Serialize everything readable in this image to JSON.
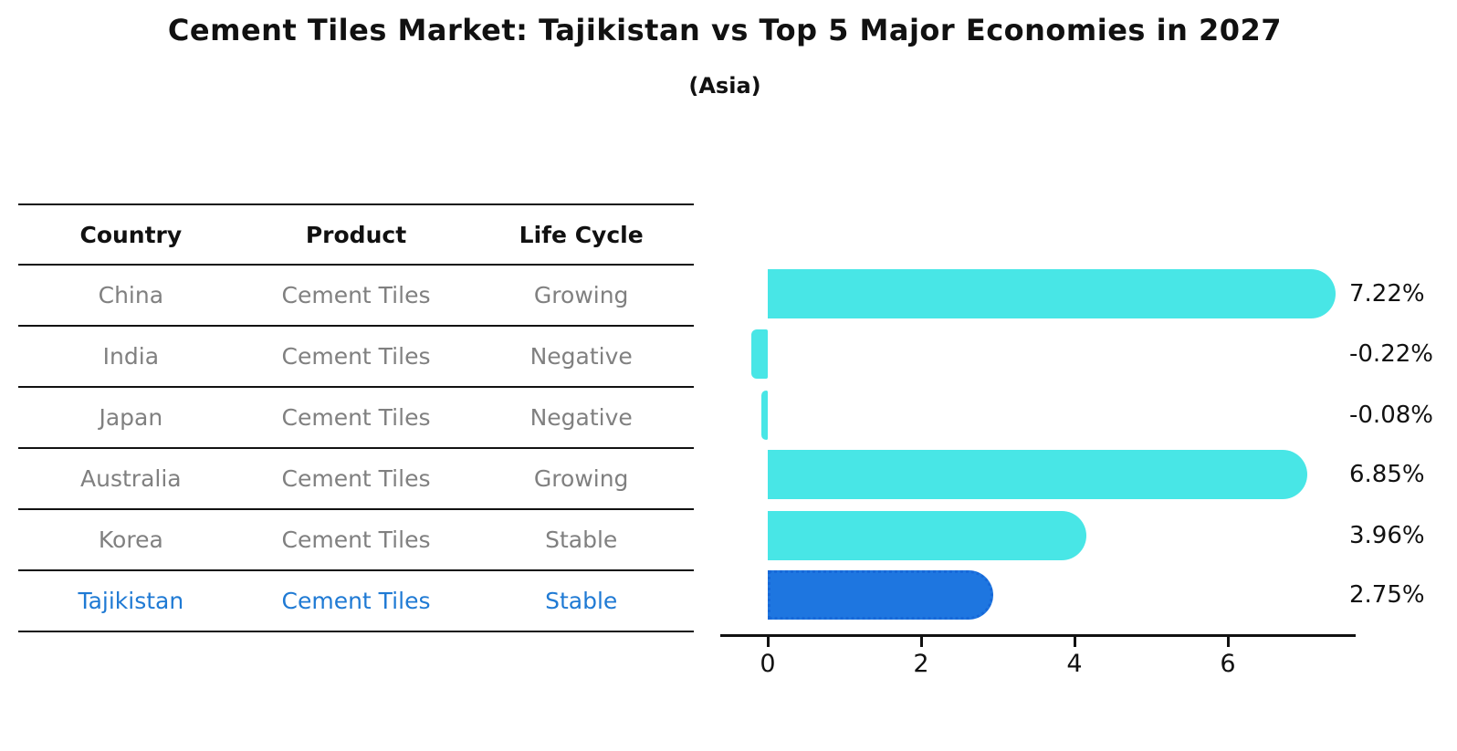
{
  "title": "Cement Tiles Market: Tajikistan vs Top 5 Major Economies in 2027",
  "subtitle": "(Asia)",
  "table": {
    "headers": [
      "Country",
      "Product",
      "Life Cycle"
    ],
    "rows": [
      {
        "country": "China",
        "product": "Cement Tiles",
        "life_cycle": "Growing",
        "highlight": false
      },
      {
        "country": "India",
        "product": "Cement Tiles",
        "life_cycle": "Negative",
        "highlight": false
      },
      {
        "country": "Japan",
        "product": "Cement Tiles",
        "life_cycle": "Negative",
        "highlight": false
      },
      {
        "country": "Australia",
        "product": "Cement Tiles",
        "life_cycle": "Growing",
        "highlight": false
      },
      {
        "country": "Korea",
        "product": "Cement Tiles",
        "life_cycle": "Stable",
        "highlight": false
      },
      {
        "country": "Tajikistan",
        "product": "Cement Tiles",
        "life_cycle": "Stable",
        "highlight": true
      }
    ]
  },
  "chart_data": {
    "type": "bar",
    "orientation": "horizontal",
    "categories": [
      "China",
      "India",
      "Japan",
      "Australia",
      "Korea",
      "Tajikistan"
    ],
    "values": [
      7.22,
      -0.22,
      -0.08,
      6.85,
      3.96,
      2.75
    ],
    "value_labels": [
      "7.22%",
      "-0.22%",
      "-0.08%",
      "6.85%",
      "3.96%",
      "2.75%"
    ],
    "xticks": [
      "0",
      "2",
      "4",
      "6"
    ],
    "xtick_values": [
      0,
      2,
      4,
      6
    ],
    "xlim": [
      -0.63,
      7.68
    ],
    "grid": false,
    "legend": null,
    "bar_color": "#48E6E6",
    "highlight_color": "#1E76E0",
    "highlight_border_color": "#1668D8",
    "highlight_index": 5,
    "highlight_border_style": "dotted"
  },
  "colors": {
    "title": "#111111",
    "table_text": "#808080",
    "table_header_text": "#111111",
    "highlight_text": "#1F7AD4",
    "axis": "#111111"
  }
}
